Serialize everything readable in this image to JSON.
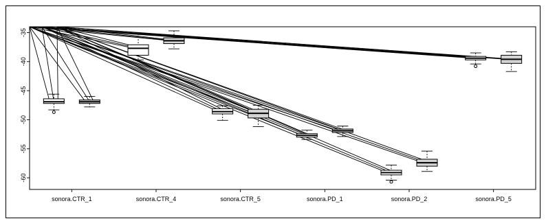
{
  "chart_data": {
    "type": "boxplot",
    "title": "",
    "xlabel": "",
    "ylabel": "",
    "ylim": [
      -62,
      -34
    ],
    "yticks": [
      -35,
      -40,
      -45,
      -50,
      -55,
      -60
    ],
    "grid": false,
    "categories": [
      "sonora.CTR_1",
      "sonora.CTR_4",
      "sonora.CTR_5",
      "sonora.PD_1",
      "sonora.PD_2",
      "sonora.PD_5"
    ],
    "boxes": [
      {
        "group": "sonora.CTR_1",
        "fill": "#ffffff",
        "whisker_low": -48.3,
        "q1": -47.2,
        "median": -46.9,
        "q3": -46.4,
        "whisker_high": -45.6,
        "outliers": [
          -48.7
        ]
      },
      {
        "group": "sonora.CTR_1",
        "fill": "#d3d3d3",
        "whisker_low": -47.8,
        "q1": -47.2,
        "median": -46.9,
        "q3": -46.6,
        "whisker_high": -46.0,
        "outliers": []
      },
      {
        "group": "sonora.CTR_4",
        "fill": "#ffffff",
        "whisker_low": -39.7,
        "q1": -38.9,
        "median": -37.7,
        "q3": -37.1,
        "whisker_high": -35.2,
        "outliers": []
      },
      {
        "group": "sonora.CTR_4",
        "fill": "#d3d3d3",
        "whisker_low": -37.8,
        "q1": -36.9,
        "median": -36.4,
        "q3": -35.9,
        "whisker_high": -34.7,
        "outliers": []
      },
      {
        "group": "sonora.CTR_5",
        "fill": "#ffffff",
        "whisker_low": -50.1,
        "q1": -49.0,
        "median": -48.6,
        "q3": -48.1,
        "whisker_high": -47.6,
        "outliers": []
      },
      {
        "group": "sonora.CTR_5",
        "fill": "#d3d3d3",
        "whisker_low": -51.2,
        "q1": -49.7,
        "median": -48.9,
        "q3": -48.2,
        "whisker_high": -47.5,
        "outliers": []
      },
      {
        "group": "sonora.PD_1",
        "fill": "#ffffff",
        "whisker_low": -53.4,
        "q1": -53.0,
        "median": -52.7,
        "q3": -52.4,
        "whisker_high": -51.8,
        "outliers": []
      },
      {
        "group": "sonora.PD_1",
        "fill": "#d3d3d3",
        "whisker_low": -52.9,
        "q1": -52.2,
        "median": -51.9,
        "q3": -51.6,
        "whisker_high": -51.1,
        "outliers": []
      },
      {
        "group": "sonora.PD_2",
        "fill": "#ffffff",
        "whisker_low": -60.4,
        "q1": -59.5,
        "median": -59.1,
        "q3": -58.7,
        "whisker_high": -57.8,
        "outliers": [
          -60.7
        ]
      },
      {
        "group": "sonora.PD_2",
        "fill": "#d3d3d3",
        "whisker_low": -58.9,
        "q1": -58.0,
        "median": -57.4,
        "q3": -56.8,
        "whisker_high": -55.4,
        "outliers": []
      },
      {
        "group": "sonora.PD_5",
        "fill": "#ffffff",
        "whisker_low": -40.4,
        "q1": -39.7,
        "median": -39.4,
        "q3": -39.1,
        "whisker_high": -38.5,
        "outliers": [
          -40.8
        ]
      },
      {
        "group": "sonora.PD_5",
        "fill": "#d3d3d3",
        "whisker_low": -41.7,
        "q1": -40.3,
        "median": -39.6,
        "q3": -38.9,
        "whisker_high": -38.3,
        "outliers": []
      }
    ],
    "connector_lines": "straight black lines from the upper-left corner fanning down to each box",
    "colors": {
      "box_white": "#ffffff",
      "box_gray": "#d3d3d3",
      "stroke": "#000000"
    }
  }
}
